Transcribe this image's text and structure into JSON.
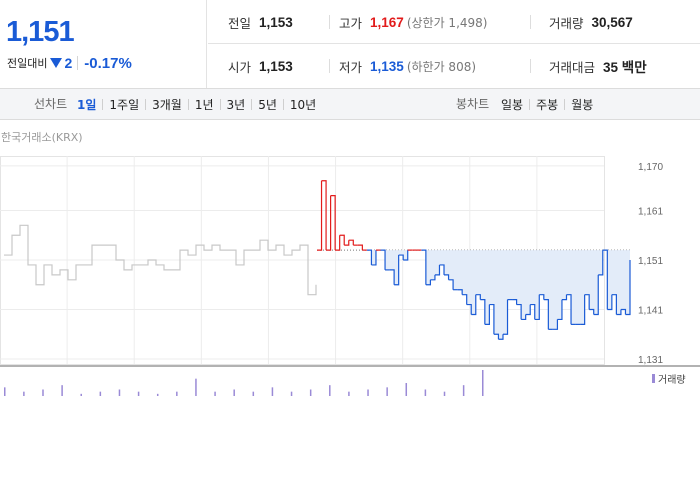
{
  "quote": {
    "price": "1,151",
    "change_label": "전일대비",
    "change_value": "2",
    "change_pct": "-0.17%",
    "stats": [
      [
        {
          "label": "전일",
          "value": "1,153",
          "tone": "",
          "sub": ""
        },
        {
          "label": "고가",
          "value": "1,167",
          "tone": "up",
          "sub": "(상한가 1,498)"
        },
        {
          "label": "거래량",
          "value": "30,567",
          "tone": "",
          "sub": ""
        }
      ],
      [
        {
          "label": "시가",
          "value": "1,153",
          "tone": "",
          "sub": ""
        },
        {
          "label": "저가",
          "value": "1,135",
          "tone": "down",
          "sub": "(하한가 808)"
        },
        {
          "label": "거래대금",
          "value": "35 백만",
          "tone": "",
          "sub": ""
        }
      ]
    ]
  },
  "tabbar": {
    "line_title": "선차트",
    "line_tabs": [
      "1일",
      "1주일",
      "3개월",
      "1년",
      "3년",
      "5년",
      "10년"
    ],
    "line_active": 0,
    "candle_title": "봉차트",
    "candle_tabs": [
      "일봉",
      "주봉",
      "월봉"
    ]
  },
  "chart": {
    "exchange_label": "한국거래소(KRX)",
    "volume_label": "거래량",
    "colors": {
      "up": "#e21b1b",
      "down": "#1a5bd6",
      "prior": "#c8c8c8",
      "fill": "#e3ecf9",
      "volume": "#9a8ad6"
    }
  },
  "chart_data": {
    "type": "line",
    "ylim": [
      1130,
      1172
    ],
    "yticks": [
      "1,170",
      "1,161",
      "1,151",
      "1,141",
      "1,131"
    ],
    "reference_value": 1153,
    "series": [
      {
        "x": [
          0,
          1,
          2,
          3,
          4,
          5,
          6,
          7,
          8,
          9,
          10,
          11,
          12,
          13,
          14,
          15,
          16,
          17,
          18,
          19,
          20,
          21,
          22,
          23,
          24,
          25,
          26,
          27,
          28,
          29,
          30,
          31,
          32,
          33,
          34,
          35,
          36,
          37,
          38,
          39
        ],
        "values": [
          1152,
          1156,
          1158,
          1150,
          1146,
          1150,
          1148,
          1149,
          1147,
          1150,
          1150,
          1154,
          1154,
          1154,
          1151,
          1149,
          1150,
          1150,
          1151,
          1150,
          1149,
          1149,
          1153,
          1152,
          1154,
          1153,
          1154,
          1153,
          1153,
          1150,
          1153,
          1153,
          1155,
          1153,
          1154,
          1152,
          1153,
          1154,
          1144,
          1146
        ]
      },
      {
        "x": [
          0,
          1,
          2,
          3,
          4,
          5,
          6,
          7,
          8,
          9,
          10,
          11,
          12,
          13,
          14,
          15,
          16,
          17,
          18,
          19,
          20,
          21,
          22,
          23,
          24,
          25,
          26,
          27,
          28,
          29,
          30,
          31,
          32,
          33,
          34,
          35,
          36,
          37,
          38,
          39,
          40,
          41,
          42,
          43,
          44,
          45,
          46,
          47,
          48,
          49,
          50,
          51,
          52,
          53,
          54,
          55,
          56,
          57,
          58,
          59,
          60,
          61,
          62,
          63,
          64,
          65,
          66,
          67,
          68,
          69
        ],
        "values": [
          1153,
          1167,
          1153,
          1164,
          1153,
          1156,
          1154,
          1155,
          1154,
          1154,
          1153,
          1153,
          1150,
          1153,
          1153,
          1149,
          1149,
          1146,
          1152,
          1151,
          1153,
          1153,
          1153,
          1153,
          1146,
          1147,
          1148,
          1150,
          1148,
          1147,
          1145,
          1145,
          1144,
          1142,
          1140,
          1144,
          1143,
          1138,
          1142,
          1136,
          1135,
          1136,
          1143,
          1143,
          1142,
          1139,
          1140,
          1142,
          1139,
          1144,
          1143,
          1137,
          1137,
          1139,
          1143,
          1144,
          1138,
          1138,
          1138,
          1144,
          1141,
          1140,
          1148,
          1153,
          1141,
          1144,
          1140,
          1141,
          1140,
          1151
        ]
      }
    ],
    "volume": [
      4,
      2,
      3,
      5,
      1,
      2,
      3,
      2,
      1,
      2,
      8,
      2,
      3,
      2,
      4,
      2,
      3,
      5,
      2,
      3,
      4,
      6,
      3,
      2,
      5,
      12
    ]
  }
}
